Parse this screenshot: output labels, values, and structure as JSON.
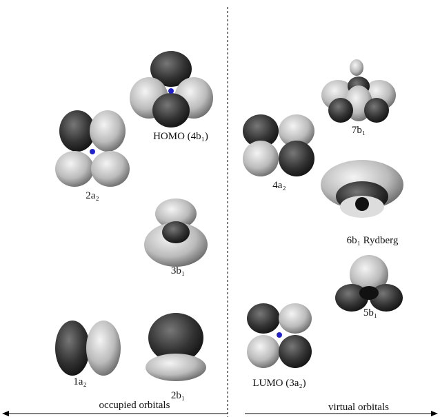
{
  "orbitals": [
    {
      "label": "HOMO (4b₁)"
    },
    {
      "label": "2a₂"
    },
    {
      "label": "3b₁"
    },
    {
      "label": "1a₂"
    },
    {
      "label": "2b₁"
    },
    {
      "label": "7b₁"
    },
    {
      "label": "4a₂"
    },
    {
      "label": "6b₁ Rydberg"
    },
    {
      "label": "5b₁"
    },
    {
      "label": "LUMO (3a₂)"
    }
  ],
  "axis": {
    "left": "occupied orbitals",
    "right": "virtual orbitals"
  }
}
